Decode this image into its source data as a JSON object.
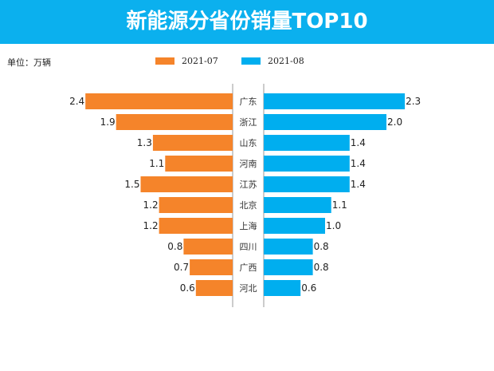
{
  "header": {
    "title": "新能源分省份销量TOP10"
  },
  "chart_data": {
    "type": "bar",
    "orientation": "horizontal-butterfly",
    "title": "新能源分省份销量TOP10",
    "unit_label": "单位：万辆",
    "categories": [
      "广东",
      "浙江",
      "山东",
      "河南",
      "江苏",
      "北京",
      "上海",
      "四川",
      "广西",
      "河北"
    ],
    "series": [
      {
        "name": "2021-07",
        "side": "left",
        "color": "#F5842A",
        "values": [
          2.4,
          1.9,
          1.3,
          1.1,
          1.5,
          1.2,
          1.2,
          0.8,
          0.7,
          0.6
        ]
      },
      {
        "name": "2021-08",
        "side": "right",
        "color": "#00AEEF",
        "values": [
          2.3,
          2.0,
          1.4,
          1.4,
          1.4,
          1.1,
          1.0,
          0.8,
          0.8,
          0.6
        ]
      }
    ],
    "legend": "top-center",
    "grid": false
  }
}
